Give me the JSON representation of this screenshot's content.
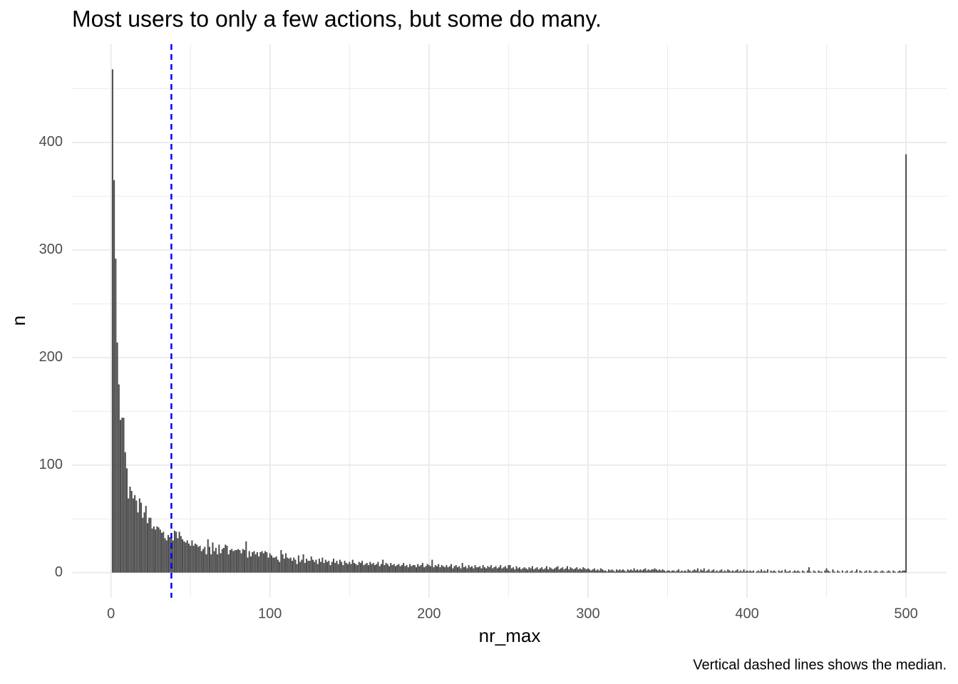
{
  "chart_data": {
    "type": "bar",
    "title": "Most users to only a few actions, but some do many.",
    "caption": "Vertical dashed lines shows the median.",
    "x_label": "nr_max",
    "y_label": "n",
    "color": "#4a4a4a",
    "x": [
      1,
      2,
      3,
      4,
      5,
      6,
      7,
      8,
      9,
      10,
      11,
      12,
      13,
      14,
      15,
      16,
      17,
      18,
      19,
      20,
      21,
      22,
      23,
      24,
      25,
      26,
      27,
      28,
      29,
      30,
      31,
      32,
      33,
      34,
      35,
      36,
      37,
      38,
      39,
      40,
      41,
      42,
      43,
      44,
      45,
      46,
      47,
      48,
      49,
      50,
      51,
      52,
      53,
      54,
      55,
      56,
      57,
      58,
      59,
      60,
      61,
      62,
      63,
      64,
      65,
      66,
      67,
      68,
      69,
      70,
      71,
      72,
      73,
      74,
      75,
      76,
      77,
      78,
      79,
      80,
      81,
      82,
      83,
      84,
      85,
      86,
      87,
      88,
      89,
      90,
      91,
      92,
      93,
      94,
      95,
      96,
      97,
      98,
      99,
      100,
      101,
      102,
      103,
      104,
      105,
      106,
      107,
      108,
      109,
      110,
      111,
      112,
      113,
      114,
      115,
      116,
      117,
      118,
      119,
      120,
      121,
      122,
      123,
      124,
      125,
      126,
      127,
      128,
      129,
      130,
      131,
      132,
      133,
      134,
      135,
      136,
      137,
      138,
      139,
      140,
      141,
      142,
      143,
      144,
      145,
      146,
      147,
      148,
      149,
      150,
      151,
      152,
      153,
      154,
      155,
      156,
      157,
      158,
      159,
      160,
      161,
      162,
      163,
      164,
      165,
      166,
      167,
      168,
      169,
      170,
      171,
      172,
      173,
      174,
      175,
      176,
      177,
      178,
      179,
      180,
      181,
      182,
      183,
      184,
      185,
      186,
      187,
      188,
      189,
      190,
      191,
      192,
      193,
      194,
      195,
      196,
      197,
      198,
      199,
      200,
      201,
      202,
      203,
      204,
      205,
      206,
      207,
      208,
      209,
      210,
      211,
      212,
      213,
      214,
      215,
      216,
      217,
      218,
      219,
      220,
      221,
      222,
      223,
      224,
      225,
      226,
      227,
      228,
      229,
      230,
      231,
      232,
      233,
      234,
      235,
      236,
      237,
      238,
      239,
      240,
      241,
      242,
      243,
      244,
      245,
      246,
      247,
      248,
      249,
      250,
      251,
      252,
      253,
      254,
      255,
      256,
      257,
      258,
      259,
      260,
      261,
      262,
      263,
      264,
      265,
      266,
      267,
      268,
      269,
      270,
      271,
      272,
      273,
      274,
      275,
      276,
      277,
      278,
      279,
      280,
      281,
      282,
      283,
      284,
      285,
      286,
      287,
      288,
      289,
      290,
      291,
      292,
      293,
      294,
      295,
      296,
      297,
      298,
      299,
      300,
      301,
      302,
      303,
      304,
      305,
      306,
      307,
      308,
      309,
      310,
      311,
      312,
      313,
      314,
      315,
      316,
      317,
      318,
      319,
      320,
      321,
      322,
      323,
      324,
      325,
      326,
      327,
      328,
      329,
      330,
      331,
      332,
      333,
      334,
      335,
      336,
      337,
      338,
      339,
      340,
      341,
      342,
      343,
      344,
      345,
      346,
      347,
      348,
      349,
      350,
      351,
      352,
      353,
      354,
      355,
      356,
      357,
      358,
      359,
      360,
      361,
      362,
      363,
      364,
      365,
      366,
      367,
      368,
      369,
      370,
      371,
      372,
      373,
      374,
      375,
      376,
      377,
      378,
      379,
      380,
      381,
      382,
      383,
      384,
      385,
      386,
      387,
      388,
      389,
      390,
      391,
      392,
      393,
      394,
      395,
      396,
      397,
      398,
      399,
      400,
      401,
      402,
      403,
      404,
      405,
      406,
      407,
      408,
      409,
      410,
      411,
      412,
      413,
      414,
      415,
      416,
      417,
      418,
      419,
      420,
      421,
      422,
      423,
      424,
      425,
      426,
      427,
      428,
      429,
      430,
      431,
      432,
      433,
      434,
      435,
      436,
      437,
      438,
      439,
      440,
      441,
      442,
      443,
      444,
      445,
      446,
      447,
      448,
      449,
      450,
      451,
      452,
      453,
      454,
      455,
      456,
      457,
      458,
      459,
      460,
      461,
      462,
      463,
      464,
      465,
      466,
      467,
      468,
      469,
      470,
      471,
      472,
      473,
      474,
      475,
      476,
      477,
      478,
      479,
      480,
      481,
      482,
      483,
      484,
      485,
      486,
      487,
      488,
      489,
      490,
      491,
      492,
      493,
      494,
      495,
      496,
      497,
      498,
      499,
      500
    ],
    "values": [
      468,
      365,
      292,
      214,
      175,
      142,
      144,
      144,
      112,
      97,
      69,
      80,
      76,
      69,
      72,
      67,
      56,
      69,
      65,
      51,
      56,
      62,
      46,
      51,
      51,
      41,
      43,
      40,
      43,
      42,
      40,
      37,
      38,
      32,
      30,
      35,
      33,
      36,
      30,
      39,
      38,
      32,
      38,
      34,
      31,
      29,
      28,
      30,
      27,
      25,
      30,
      25,
      27,
      26,
      24,
      25,
      20,
      22,
      24,
      17,
      31,
      24,
      17,
      28,
      20,
      23,
      17,
      26,
      18,
      22,
      23,
      26,
      25,
      17,
      21,
      22,
      20,
      21,
      21,
      22,
      21,
      18,
      22,
      21,
      29,
      14,
      20,
      15,
      19,
      20,
      17,
      19,
      15,
      19,
      20,
      18,
      20,
      19,
      14,
      18,
      16,
      14,
      14,
      15,
      12,
      10,
      21,
      17,
      13,
      18,
      14,
      13,
      14,
      11,
      14,
      12,
      8,
      16,
      10,
      12,
      17,
      9,
      13,
      11,
      11,
      15,
      12,
      10,
      12,
      8,
      13,
      10,
      14,
      9,
      12,
      10,
      11,
      7,
      10,
      13,
      9,
      11,
      8,
      12,
      10,
      7,
      11,
      9,
      8,
      10,
      8,
      12,
      9,
      8,
      7,
      10,
      9,
      11,
      7,
      8,
      9,
      7,
      10,
      8,
      9,
      7,
      8,
      10,
      6,
      8,
      12,
      7,
      9,
      8,
      6,
      9,
      7,
      8,
      6,
      7,
      8,
      6,
      7,
      9,
      6,
      7,
      5,
      8,
      6,
      7,
      7,
      5,
      8,
      6,
      7,
      9,
      5,
      6,
      8,
      7,
      6,
      12,
      5,
      7,
      6,
      8,
      5,
      7,
      6,
      5,
      7,
      5,
      6,
      8,
      4,
      6,
      7,
      5,
      6,
      4,
      9,
      5,
      6,
      4,
      7,
      5,
      6,
      4,
      7,
      5,
      5,
      6,
      4,
      7,
      5,
      4,
      6,
      5,
      7,
      4,
      5,
      6,
      4,
      5,
      7,
      4,
      5,
      6,
      4,
      7,
      7,
      4,
      5,
      3,
      6,
      4,
      5,
      3,
      4,
      5,
      4,
      3,
      5,
      4,
      6,
      3,
      4,
      5,
      3,
      4,
      5,
      3,
      4,
      6,
      3,
      5,
      4,
      3,
      4,
      5,
      6,
      3,
      4,
      5,
      3,
      4,
      6,
      3,
      5,
      4,
      3,
      4,
      5,
      3,
      4,
      3,
      5,
      4,
      3,
      4,
      3,
      2,
      3,
      4,
      2,
      3,
      2,
      4,
      3,
      2,
      2,
      1,
      3,
      2,
      3,
      2,
      1,
      3,
      2,
      3,
      2,
      3,
      2,
      1,
      3,
      2,
      3,
      2,
      4,
      2,
      3,
      2,
      3,
      2,
      3,
      4,
      2,
      3,
      2,
      3,
      3,
      4,
      3,
      2,
      3,
      2,
      3,
      2,
      1,
      2,
      2,
      1,
      2,
      2,
      1,
      2,
      3,
      1,
      2,
      1,
      2,
      1,
      3,
      2,
      1,
      2,
      3,
      2,
      4,
      1,
      3,
      2,
      4,
      1,
      2,
      3,
      1,
      2,
      3,
      1,
      2,
      1,
      2,
      3,
      1,
      2,
      1,
      3,
      2,
      1,
      2,
      1,
      2,
      3,
      1,
      2,
      1,
      3,
      1,
      2,
      1,
      2,
      1,
      2,
      0,
      1,
      2,
      1,
      3,
      1,
      2,
      1,
      3,
      0,
      2,
      1,
      2,
      1,
      0,
      2,
      1,
      2,
      0,
      3,
      1,
      1,
      2,
      0,
      1,
      2,
      1,
      2,
      1,
      0,
      2,
      1,
      0,
      2,
      5,
      1,
      0,
      2,
      1,
      0,
      2,
      1,
      1,
      0,
      2,
      4,
      2,
      1,
      0,
      3,
      1,
      0,
      2,
      1,
      0,
      2,
      0,
      1,
      2,
      0,
      1,
      2,
      0,
      1,
      3,
      0,
      2,
      1,
      0,
      1,
      2,
      0,
      2,
      1,
      0,
      1,
      2,
      1,
      0,
      1,
      2,
      1,
      0,
      1,
      2,
      1,
      0,
      2,
      1,
      0,
      1,
      2,
      1,
      2,
      2,
      389
    ],
    "median_line": {
      "value": 38,
      "color": "#0000ff"
    },
    "xlim": [
      -24.5,
      525.5
    ],
    "xticks": [
      0,
      100,
      200,
      300,
      400,
      500
    ],
    "xminor": [
      50,
      150,
      250,
      350,
      450
    ],
    "ylim": [
      -23.4,
      491.4
    ],
    "yticks": [
      0,
      100,
      200,
      300,
      400
    ],
    "yminor": [
      50,
      150,
      250,
      350,
      450
    ],
    "grid": true
  }
}
